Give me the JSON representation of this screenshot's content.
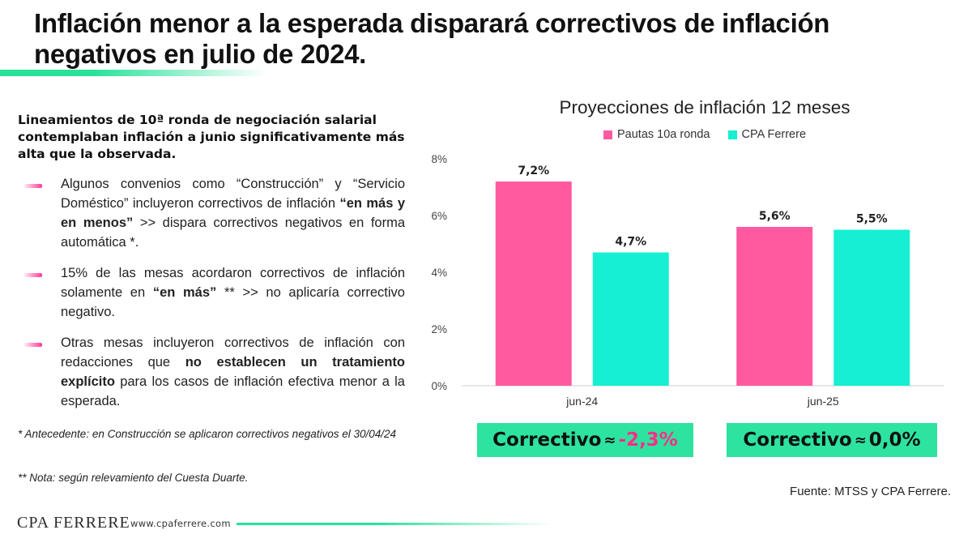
{
  "header": {
    "title": "Inflación menor a la esperada disparará correctivos de inflación negativos en julio de 2024."
  },
  "left_panel": {
    "intro": "Lineamientos de 10ª ronda de negociación salarial contemplaban inflación a junio significativamente más alta que la observada.",
    "bullets": [
      {
        "parts": [
          {
            "text": "Algunos convenios como “Construcción” y “Servicio Doméstico” incluyeron correctivos de inflación ",
            "bold": false
          },
          {
            "text": "“en más y en menos”",
            "bold": true
          },
          {
            "text": " >> dispara correctivos negativos en forma automática *.",
            "bold": false
          }
        ]
      },
      {
        "parts": [
          {
            "text": "15% de las mesas acordaron correctivos de inflación solamente en ",
            "bold": false
          },
          {
            "text": "“en más”",
            "bold": true
          },
          {
            "text": " ** >> no aplicaría correctivo negativo.",
            "bold": false
          }
        ]
      },
      {
        "parts": [
          {
            "text": "Otras mesas incluyeron correctivos de inflación con redacciones que ",
            "bold": false
          },
          {
            "text": "no establecen un tratamiento explícito",
            "bold": true
          },
          {
            "text": " para los casos de inflación efectiva menor a la esperada.",
            "bold": false
          }
        ]
      }
    ],
    "note1": "* Antecedente: en Construcción se aplicaron correctivos negativos el 30/04/24",
    "note2": "** Nota: según relevamiento del Cuesta Duarte."
  },
  "chart_data": {
    "type": "bar",
    "title": "Proyecciones de inflación 12 meses",
    "categories": [
      "jun-24",
      "jun-25"
    ],
    "series": [
      {
        "name": "Pautas 10a ronda",
        "color": "#ff5aa0",
        "values": [
          7.2,
          5.6
        ],
        "labels": [
          "7,2%",
          "5,6%"
        ]
      },
      {
        "name": "CPA Ferrere",
        "color": "#16efd2",
        "values": [
          4.7,
          5.5
        ],
        "labels": [
          "4,7%",
          "5,5%"
        ]
      }
    ],
    "yticks": [
      0,
      2,
      4,
      6,
      8
    ],
    "ytick_labels": [
      "0%",
      "2%",
      "4%",
      "6%",
      "8%"
    ],
    "ylim": [
      0,
      8
    ],
    "grid": false,
    "legend_position": "top"
  },
  "correctivos": [
    {
      "label": "Correctivo",
      "approx": "≈",
      "value": "-2,3%",
      "color": "#ff2d86"
    },
    {
      "label": "Correctivo",
      "approx": "≈",
      "value": "0,0%",
      "color": "#111111"
    }
  ],
  "footer": {
    "source": "Fuente: MTSS y CPA Ferrere.",
    "logo": "CPA FERRERE",
    "website": "www.cpaferrere.com"
  }
}
